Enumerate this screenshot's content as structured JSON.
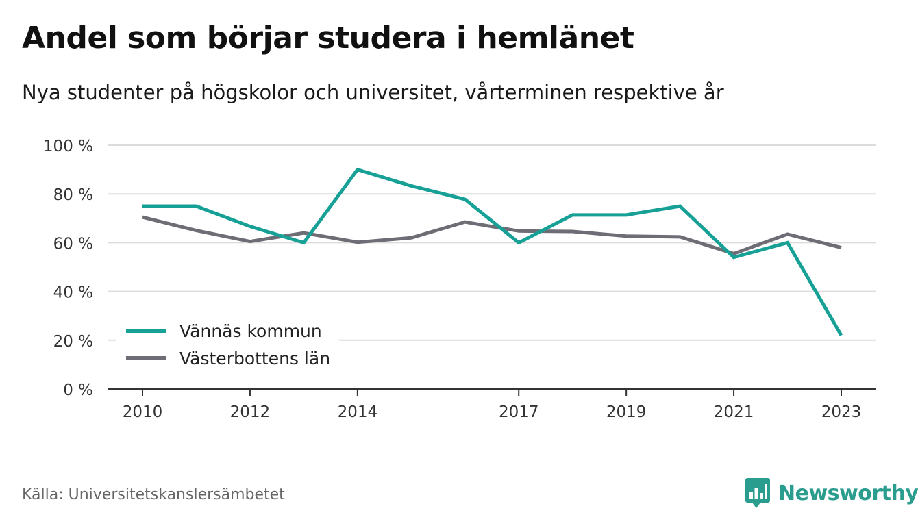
{
  "header": {
    "title": "Andel som börjar studera i hemlänet",
    "subtitle": "Nya studenter på högskolor och universitet, vårterminen respektive år"
  },
  "footer": {
    "source": "Källa: Universitetskanslersämbetet",
    "brand": "Newsworthy",
    "brand_icon": "bar-chart-speech-bubble-icon",
    "brand_color": "#2a9d8f"
  },
  "chart_data": {
    "type": "line",
    "x": [
      2010,
      2011,
      2012,
      2013,
      2014,
      2015,
      2016,
      2017,
      2018,
      2019,
      2020,
      2021,
      2022,
      2023
    ],
    "x_tick_labels": [
      "2010",
      "2012",
      "2014",
      "2017",
      "2019",
      "2021",
      "2023"
    ],
    "x_tick_values": [
      2010,
      2012,
      2014,
      2017,
      2019,
      2021,
      2023
    ],
    "ylim": [
      0,
      100
    ],
    "y_ticks": [
      0,
      20,
      40,
      60,
      80,
      100
    ],
    "y_tick_labels": [
      "0 %",
      "20 %",
      "40 %",
      "60 %",
      "80 %",
      "100 %"
    ],
    "grid": true,
    "legend_position": "bottom-left",
    "series": [
      {
        "name": "Vännäs kommun",
        "color": "#16a096",
        "values": [
          75,
          75,
          66.7,
          60,
          90,
          83.3,
          77.8,
          60,
          71.4,
          71.4,
          75,
          54,
          60,
          22
        ]
      },
      {
        "name": "Västerbottens län",
        "color": "#6e6d75",
        "values": [
          70.5,
          65,
          60.5,
          64,
          60.2,
          62,
          68.5,
          64.8,
          64.6,
          62.7,
          62.4,
          55.5,
          63.5,
          58
        ]
      }
    ]
  }
}
